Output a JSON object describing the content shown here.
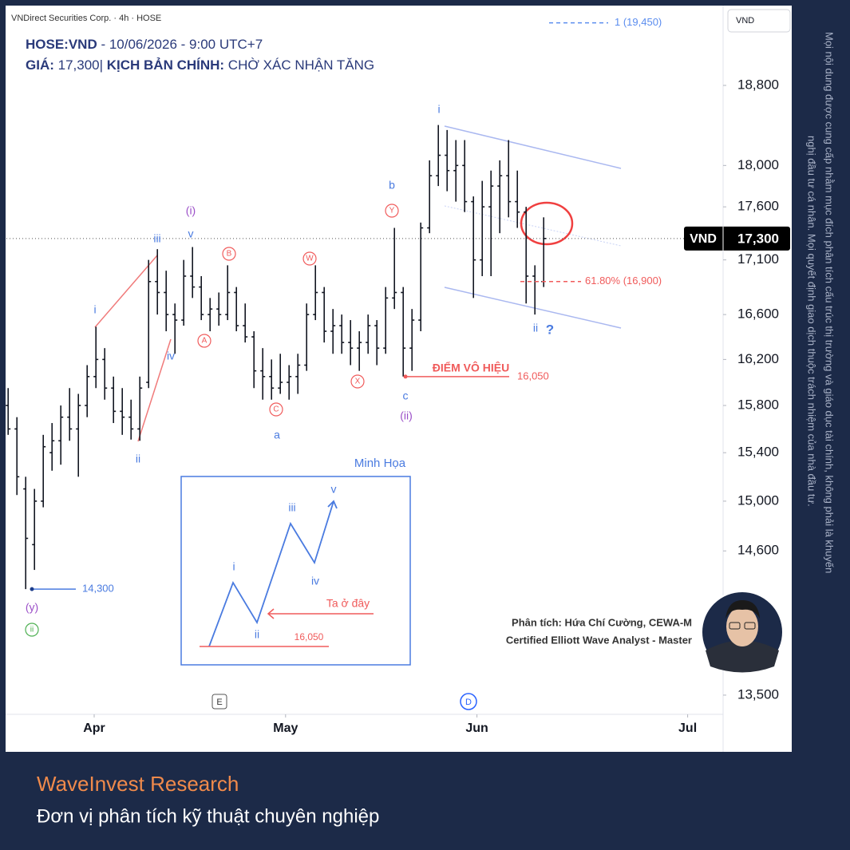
{
  "header": {
    "source": "VNDirect Securities Corp. · 4h · HOSE",
    "symbol": "HOSE:VND",
    "date": " - 10/06/2026 - 9:00 UTC+7",
    "price_label": "GIÁ:",
    "price_value": " 17,300|",
    "scenario_label": " KỊCH BẢN CHÍNH:",
    "scenario_value": " CHỜ XÁC NHẬN TĂNG"
  },
  "chart_data": {
    "type": "ohlc",
    "currency": "VND",
    "log_scale": true,
    "grid": false,
    "color": "#131722",
    "ylim": [
      13360,
      19650
    ],
    "yticks": [
      {
        "value": 13500,
        "label": "13,500"
      },
      {
        "value": 14600,
        "label": "14,600"
      },
      {
        "value": 15000,
        "label": "15,000"
      },
      {
        "value": 15400,
        "label": "15,400"
      },
      {
        "value": 15800,
        "label": "15,800"
      },
      {
        "value": 16200,
        "label": "16,200"
      },
      {
        "value": 16600,
        "label": "16,600"
      },
      {
        "value": 17100,
        "label": "17,100"
      },
      {
        "value": 17600,
        "label": "17,600"
      },
      {
        "value": 18000,
        "label": "18,000"
      },
      {
        "value": 18800,
        "label": "18,800"
      }
    ],
    "xlim": [
      -0.2,
      81.3
    ],
    "xticks": [
      {
        "value": 9.8,
        "label": "Apr"
      },
      {
        "value": 31.6,
        "label": "May"
      },
      {
        "value": 53.4,
        "label": "Jun"
      },
      {
        "value": 77.4,
        "label": "Jul"
      }
    ],
    "bars": [
      [
        15800,
        15950,
        15550,
        15600
      ],
      [
        15600,
        15700,
        15050,
        15200
      ],
      [
        15100,
        15200,
        14300,
        14700
      ],
      [
        14650,
        15100,
        14450,
        15000
      ],
      [
        15000,
        15550,
        14950,
        15450
      ],
      [
        15400,
        15650,
        15250,
        15500
      ],
      [
        15500,
        15800,
        15300,
        15700
      ],
      [
        15700,
        15950,
        15500,
        15600
      ],
      [
        15600,
        15900,
        15200,
        15800
      ],
      [
        15800,
        16150,
        15700,
        16050
      ],
      [
        16050,
        16490,
        15950,
        16200
      ],
      [
        16200,
        16300,
        15850,
        15950
      ],
      [
        15950,
        16050,
        15650,
        15750
      ],
      [
        15750,
        15950,
        15550,
        15700
      ],
      [
        15700,
        15850,
        15510,
        15600
      ],
      [
        15600,
        16050,
        15500,
        15950
      ],
      [
        16000,
        17100,
        15950,
        16900
      ],
      [
        16900,
        17200,
        16600,
        16800
      ],
      [
        16800,
        17000,
        16450,
        16600
      ],
      [
        16600,
        16700,
        16250,
        16550
      ],
      [
        16550,
        17100,
        16500,
        16950
      ],
      [
        16950,
        17220,
        16750,
        16850
      ],
      [
        16850,
        16950,
        16550,
        16600
      ],
      [
        16600,
        16750,
        16450,
        16650
      ],
      [
        16650,
        16800,
        16500,
        16600
      ],
      [
        16600,
        17050,
        16550,
        16800
      ],
      [
        16800,
        16850,
        16450,
        16500
      ],
      [
        16500,
        16700,
        16350,
        16400
      ],
      [
        16400,
        16450,
        15950,
        16100
      ],
      [
        16100,
        16300,
        15850,
        16050
      ],
      [
        16050,
        16200,
        15850,
        15950
      ],
      [
        15950,
        16250,
        15900,
        16000
      ],
      [
        16000,
        16150,
        15850,
        16050
      ],
      [
        16050,
        16250,
        15900,
        16150
      ],
      [
        16150,
        16700,
        16100,
        16600
      ],
      [
        16600,
        17050,
        16550,
        16800
      ],
      [
        16800,
        16850,
        16350,
        16450
      ],
      [
        16450,
        16650,
        16250,
        16500
      ],
      [
        16500,
        16600,
        16250,
        16350
      ],
      [
        16350,
        16550,
        16150,
        16300
      ],
      [
        16300,
        16450,
        16100,
        16350
      ],
      [
        16350,
        16600,
        16250,
        16500
      ],
      [
        16500,
        16550,
        16150,
        16300
      ],
      [
        16300,
        16850,
        16250,
        16750
      ],
      [
        16750,
        17400,
        16650,
        16800
      ],
      [
        16800,
        16850,
        16050,
        16300
      ],
      [
        16300,
        16650,
        16100,
        16550
      ],
      [
        16550,
        17450,
        16450,
        17400
      ],
      [
        17400,
        18050,
        17350,
        17900
      ],
      [
        17900,
        18400,
        17800,
        18100
      ],
      [
        18100,
        18350,
        17750,
        17950
      ],
      [
        17950,
        18250,
        17650,
        18000
      ],
      [
        18000,
        18250,
        17550,
        17650
      ],
      [
        17650,
        17700,
        16750,
        17100
      ],
      [
        17100,
        17850,
        16950,
        17600
      ],
      [
        17600,
        17950,
        16950,
        17800
      ],
      [
        17800,
        18050,
        17350,
        17900
      ],
      [
        17900,
        18250,
        17500,
        17650
      ],
      [
        17650,
        17950,
        17400,
        17550
      ],
      [
        17550,
        17600,
        16700,
        16950
      ],
      [
        16950,
        17050,
        16600,
        16900
      ],
      [
        16900,
        17500,
        16850,
        17300
      ]
    ],
    "last_price": {
      "value": 17300,
      "label": "17,300"
    },
    "levels": [
      {
        "value": 19450,
        "label": "1 (19,450)",
        "color": "#5b8def"
      },
      {
        "value": 16900,
        "label": "61.80% (16,900)",
        "color": "#f05b5b"
      },
      {
        "value": 16050,
        "label": "16,050",
        "color": "#f05b5b"
      },
      {
        "value": 14300,
        "label": "14,300",
        "color": "#4a7be0"
      }
    ],
    "wave_labels": [
      "(y)",
      "ii",
      "i",
      "ii",
      "iii",
      "iv",
      "v",
      "(i)",
      "A",
      "B",
      "C",
      "a",
      "W",
      "X",
      "Y",
      "b",
      "c",
      "(ii)",
      "i",
      "ii",
      "?",
      "ĐIỂM VÔ HIỆU"
    ],
    "markers": [
      "E",
      "D"
    ]
  },
  "inset": {
    "title": "Minh Họa",
    "labels": [
      "i",
      "ii",
      "iii",
      "iv",
      "v"
    ],
    "note": "Ta ở đây",
    "level": "16,050"
  },
  "analyst": {
    "line1": "Phân tích: Hứa Chí Cường, CEWA-M",
    "line2": "Certified Elliott Wave Analyst - Master"
  },
  "disclaimer": {
    "line1": "Mọi nội dung được cung cấp nhằm mục đích phân tích cấu trúc thị trường và giáo dục tài chính, không phải là khuyến",
    "line2": "nghị đầu tư cá nhân. Mọi quyết định giao dịch thuộc trách nhiệm của nhà đầu tư."
  },
  "footer": {
    "brand": "WaveInvest Research",
    "tagline": "Đơn vị phân tích kỹ thuật chuyên nghiệp"
  }
}
